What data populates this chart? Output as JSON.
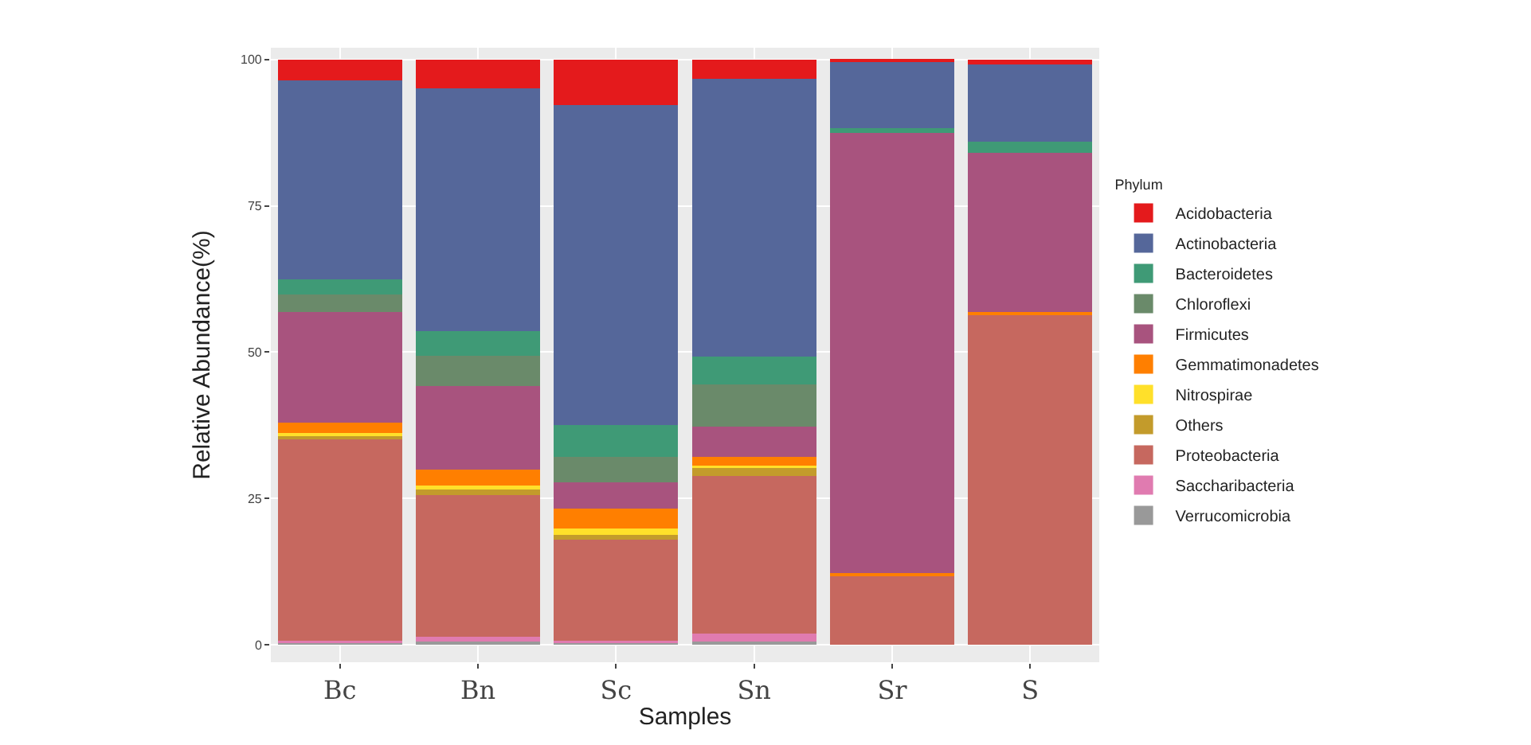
{
  "chart_data": {
    "type": "bar",
    "stacked": true,
    "xlabel": "Samples",
    "ylabel": "Relative Abundance(%)",
    "legend_title": "Phylum",
    "categories": [
      "Bc",
      "Bn",
      "Sc",
      "Sn",
      "Sr",
      "S"
    ],
    "series": [
      {
        "name": "Verrucomicrobia",
        "color": "#999999",
        "values": [
          0.5,
          0.5,
          0.5,
          0.5,
          0,
          0
        ]
      },
      {
        "name": "Saccharibacteria",
        "color": "#e07bb0",
        "values": [
          0.2,
          0.8,
          0.2,
          1.4,
          0,
          0
        ]
      },
      {
        "name": "Proteobacteria",
        "color": "#c6685f",
        "values": [
          34.5,
          24.2,
          17.2,
          26.9,
          11.9,
          56.5
        ]
      },
      {
        "name": "Others",
        "color": "#c39b2b",
        "values": [
          0.4,
          1.0,
          0.8,
          1.4,
          0,
          0
        ]
      },
      {
        "name": "Nitrospirae",
        "color": "#ffe02a",
        "values": [
          0.6,
          0.7,
          1.2,
          0.4,
          0,
          0
        ]
      },
      {
        "name": "Gemmatimonadetes",
        "color": "#ff7f00",
        "values": [
          1.8,
          2.7,
          3.4,
          1.5,
          0.4,
          0.4
        ]
      },
      {
        "name": "Firmicutes",
        "color": "#a8537e",
        "values": [
          18.8,
          14.3,
          4.4,
          5.1,
          75.2,
          27.2
        ]
      },
      {
        "name": "Chloroflexi",
        "color": "#6a8a6a",
        "values": [
          3.1,
          5.2,
          4.4,
          7.3,
          0,
          0
        ]
      },
      {
        "name": "Bacteroidetes",
        "color": "#3f9a76",
        "values": [
          2.5,
          4.2,
          5.4,
          4.7,
          0.7,
          1.8
        ]
      },
      {
        "name": "Actinobacteria",
        "color": "#55679a",
        "values": [
          34.0,
          41.5,
          54.7,
          47.5,
          11.6,
          13.2
        ]
      },
      {
        "name": "Acidobacteria",
        "color": "#e41a1c",
        "values": [
          3.6,
          4.9,
          7.8,
          3.3,
          0.2,
          0.9
        ]
      }
    ],
    "ylim": [
      -3,
      102
    ],
    "yticks": [
      0,
      25,
      50,
      75,
      100
    ],
    "grid": true,
    "legend": "right"
  }
}
